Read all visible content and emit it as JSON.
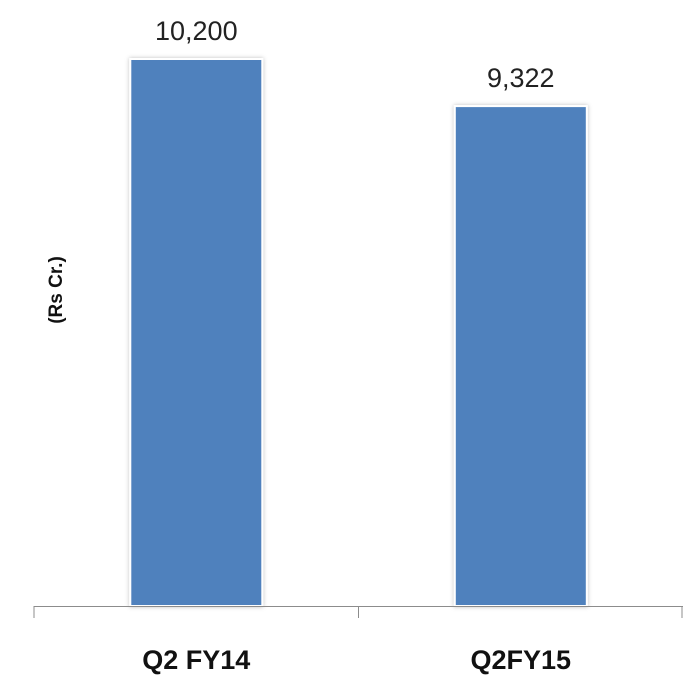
{
  "chart_data": {
    "type": "bar",
    "categories": [
      "Q2 FY14",
      "Q2FY15"
    ],
    "values": [
      10200,
      9322
    ],
    "data_labels": [
      "10,200",
      "9,322"
    ],
    "ylabel": "(Rs Cr.)",
    "ylim": [
      0,
      10200
    ],
    "grid": false,
    "legend": "none",
    "colors": {
      "bar": "#4f81bd",
      "axis": "#8c8c8c"
    }
  }
}
